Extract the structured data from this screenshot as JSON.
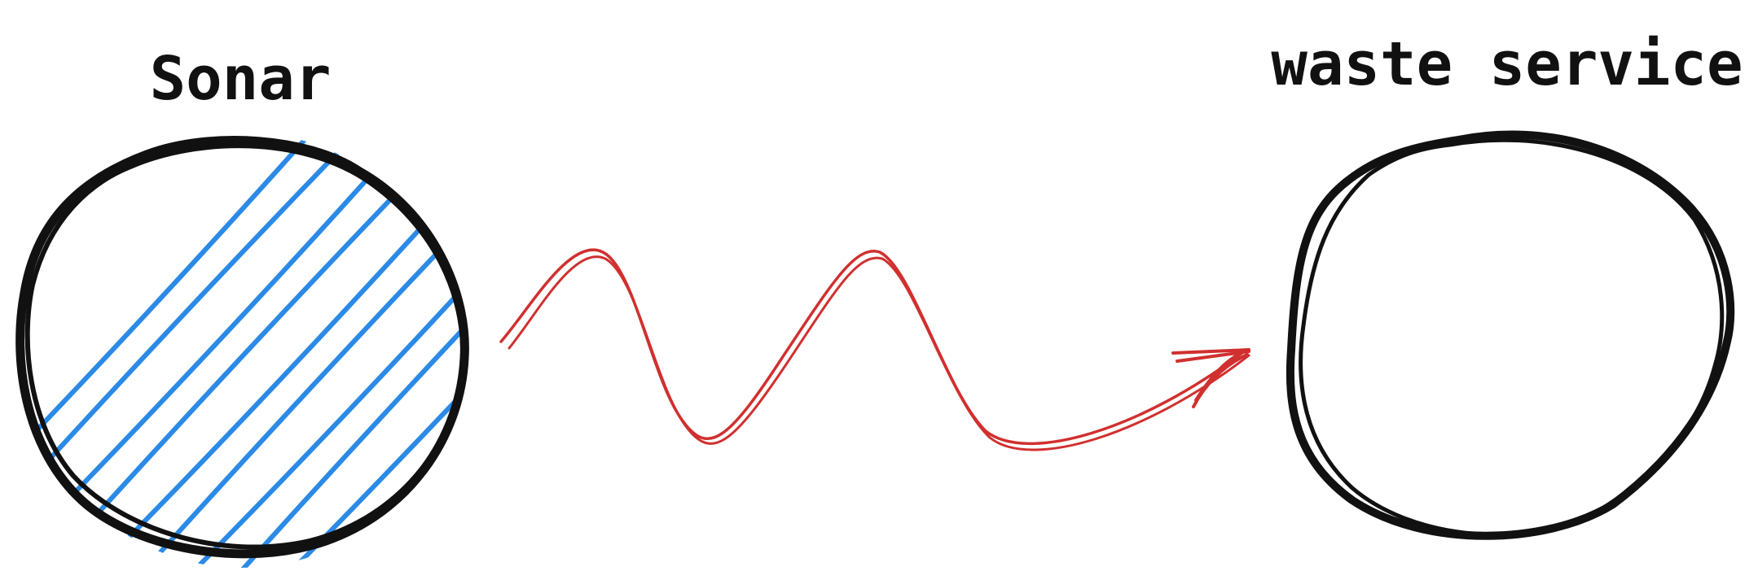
{
  "diagram": {
    "nodes": [
      {
        "id": "sonar",
        "label": "Sonar",
        "fill": "hatched",
        "hatch_color": "#2b8ae6"
      },
      {
        "id": "waste_service",
        "label": "waste service",
        "fill": "none"
      }
    ],
    "edges": [
      {
        "from": "sonar",
        "to": "waste_service",
        "style": "wavy-arrow",
        "color": "#d0302f"
      }
    ]
  },
  "colors": {
    "outline": "#111111",
    "hatch": "#2b8ae6",
    "arrow": "#d0302f"
  }
}
